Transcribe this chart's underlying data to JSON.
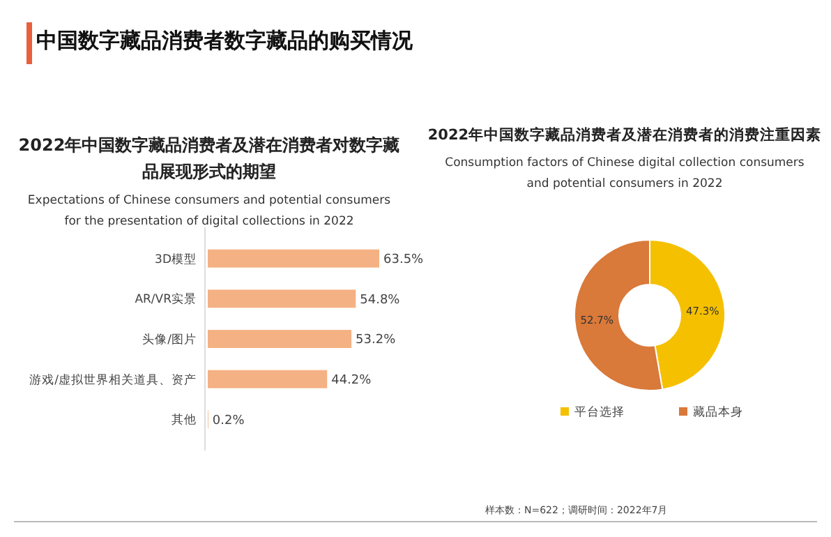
{
  "chart_data": [
    {
      "type": "bar",
      "orientation": "horizontal",
      "title": "2022年中国数字藏品消费者及潜在消费者对数字藏品展现形式的期望",
      "subtitle": "Expectations of Chinese consumers and potential consumers for the presentation of digital collections in 2022",
      "annotations": [
        "中国数字藏品消费者数字藏品的购买情况"
      ],
      "categories": [
        "3D模型",
        "AR/VR实景",
        "头像/图片",
        "游戏/虚拟世界相关道具、资产",
        "其他"
      ],
      "values": [
        63.5,
        54.8,
        53.2,
        44.2,
        0.2
      ],
      "color": "#f4b183",
      "value_labels": [
        "63.5%",
        "54.8%",
        "53.2%",
        "44.2%",
        "0.2%"
      ]
    },
    {
      "type": "donut",
      "title": "2022年中国数字藏品消费者及潜在消费者的消费注重因素",
      "subtitle": "Consumption factors of Chinese digital collection consumers and potential consumers in 2022",
      "annotations": [
        "样本数：N=622；调研时间：2022年7月"
      ],
      "categories": [
        "平台选择",
        "藏品本身"
      ],
      "values": [
        47.3,
        52.7
      ],
      "colors": [
        "#f5c000",
        "#d9793a"
      ],
      "value_labels": [
        "47.3%",
        "52.7%"
      ],
      "legend": "bottom"
    }
  ]
}
